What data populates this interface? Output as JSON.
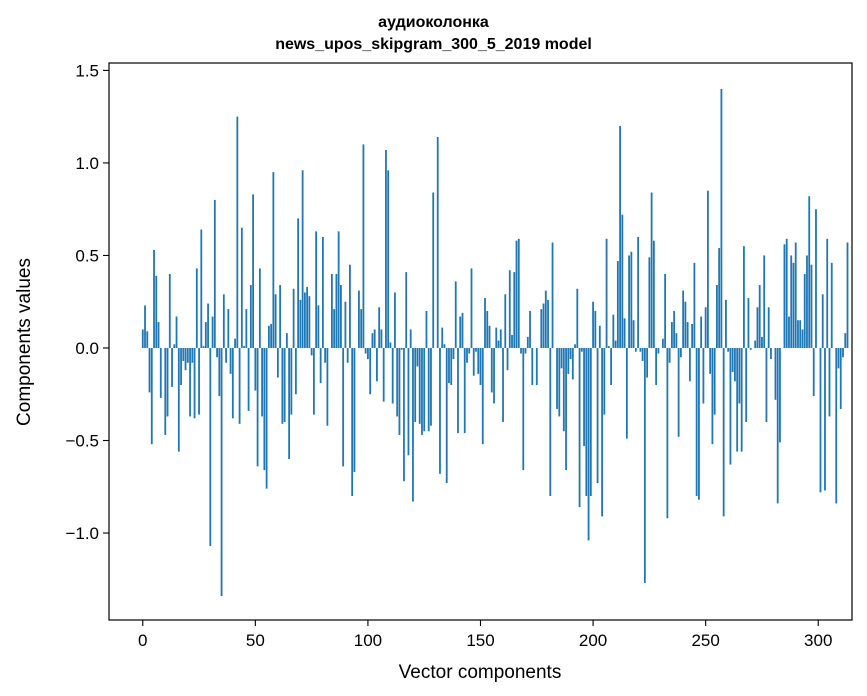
{
  "chart_data": {
    "type": "bar",
    "title_line1": "аудиоколонка",
    "title_line2": "news_upos_skipgram_300_5_2019 model",
    "xlabel": "Vector components",
    "ylabel": "Components values",
    "xlim": [
      -15,
      315
    ],
    "ylim": [
      -1.47,
      1.54
    ],
    "x_ticks": [
      0,
      50,
      100,
      150,
      200,
      250,
      300
    ],
    "x_tick_labels": [
      "0",
      "50",
      "100",
      "150",
      "200",
      "250",
      "300"
    ],
    "y_ticks": [
      -1.0,
      -0.5,
      0.0,
      0.5,
      1.0,
      1.5
    ],
    "y_tick_labels": [
      "−1.0",
      "−0.5",
      "0.0",
      "0.5",
      "1.0",
      "1.5"
    ],
    "bar_color": "#1f77b4",
    "values": [
      0.1,
      0.23,
      0.09,
      -0.24,
      -0.52,
      0.53,
      0.39,
      0.14,
      -0.27,
      0.0,
      -0.47,
      -0.37,
      0.4,
      -0.21,
      0.02,
      0.17,
      -0.56,
      -0.2,
      -0.07,
      -0.12,
      -0.08,
      -0.37,
      -0.08,
      -0.38,
      0.43,
      -0.36,
      0.64,
      0.01,
      0.14,
      0.24,
      -1.07,
      0.17,
      0.8,
      -0.05,
      -0.26,
      -1.34,
      0.29,
      -0.08,
      0.21,
      -0.14,
      -0.38,
      0.05,
      1.25,
      -0.41,
      0.65,
      0.01,
      0.21,
      -0.34,
      0.34,
      0.83,
      -0.23,
      -0.64,
      0.43,
      -0.37,
      -0.66,
      -0.76,
      0.12,
      0.13,
      0.95,
      0.29,
      -0.16,
      0.34,
      -0.41,
      -0.4,
      0.08,
      -0.6,
      -0.36,
      0.32,
      -0.25,
      0.7,
      0.26,
      0.96,
      0.3,
      0.33,
      0.28,
      -0.04,
      -0.36,
      0.63,
      0.23,
      -0.19,
      0.6,
      -0.08,
      -0.42,
      0.0,
      0.4,
      0.21,
      0.4,
      0.63,
      0.34,
      -0.64,
      0.25,
      -0.08,
      0.45,
      -0.8,
      -0.67,
      0.0,
      0.31,
      0.21,
      1.1,
      -0.03,
      -0.06,
      -0.25,
      0.08,
      0.1,
      -0.18,
      0.22,
      0.1,
      -0.29,
      1.07,
      0.96,
      0.03,
      -0.3,
      0.3,
      -0.37,
      -0.47,
      -0.01,
      -0.72,
      0.41,
      -0.58,
      0.1,
      -0.83,
      -0.4,
      -0.1,
      -0.41,
      -0.47,
      -0.45,
      0.2,
      -0.45,
      -0.42,
      0.84,
      0.0,
      1.14,
      -0.68,
      0.11,
      0.02,
      -0.73,
      -0.19,
      -0.2,
      -0.06,
      0.36,
      -0.46,
      0.17,
      0.19,
      -0.46,
      -0.08,
      -0.03,
      0.43,
      -0.15,
      -0.02,
      -0.14,
      -0.2,
      -0.52,
      0.27,
      0.2,
      0.12,
      -0.24,
      -0.3,
      0.11,
      0.04,
      0.1,
      -0.4,
      0.29,
      -0.12,
      0.42,
      0.07,
      0.41,
      0.58,
      0.59,
      -0.03,
      -0.66,
      -0.03,
      0.06,
      0.2,
      -0.2,
      0.0,
      -0.2,
      0.0,
      0.21,
      0.24,
      0.31,
      0.26,
      -0.8,
      0.57,
      0.0,
      -0.33,
      -0.37,
      -0.11,
      -0.45,
      -0.66,
      -0.14,
      -0.06,
      -0.17,
      0.02,
      0.32,
      -0.86,
      -0.02,
      -0.53,
      -0.8,
      -1.04,
      -0.8,
      0.25,
      0.2,
      -0.73,
      0.12,
      -0.91,
      -0.36,
      0.59,
      0.01,
      -0.2,
      0.18,
      0.04,
      0.47,
      1.2,
      0.72,
      0.16,
      -0.49,
      0.5,
      0.52,
      0.15,
      -0.02,
      0.6,
      -0.02,
      -0.07,
      -1.27,
      -0.16,
      0.49,
      0.84,
      0.58,
      -0.2,
      -0.03,
      0.0,
      0.05,
      0.4,
      -0.92,
      -0.08,
      0.14,
      0.2,
      0.08,
      -0.48,
      -0.05,
      0.31,
      0.25,
      0.14,
      -0.18,
      0.13,
      0.46,
      -0.8,
      -0.82,
      0.17,
      -0.3,
      0.22,
      0.85,
      -0.14,
      -0.52,
      -0.36,
      0.34,
      0.54,
      1.4,
      -0.91,
      0.26,
      -0.02,
      -0.63,
      -0.13,
      -0.18,
      -0.56,
      -0.3,
      -0.56,
      0.55,
      -0.4,
      0.27,
      -0.01,
      0.0,
      0.04,
      0.22,
      0.34,
      0.06,
      0.5,
      -0.4,
      0.22,
      -0.06,
      0.0,
      -0.28,
      -0.84,
      -0.51,
      0.0,
      0.56,
      0.59,
      0.17,
      0.5,
      0.46,
      0.57,
      0.15,
      0.15,
      0.1,
      0.4,
      0.5,
      0.82,
      0.45,
      -0.26,
      0.75,
      0.0,
      -0.78,
      0.29,
      -0.77,
      0.59,
      -0.37,
      0.46,
      0.0,
      -0.84,
      -0.11,
      -0.33,
      -0.05,
      0.08,
      0.57
    ]
  }
}
